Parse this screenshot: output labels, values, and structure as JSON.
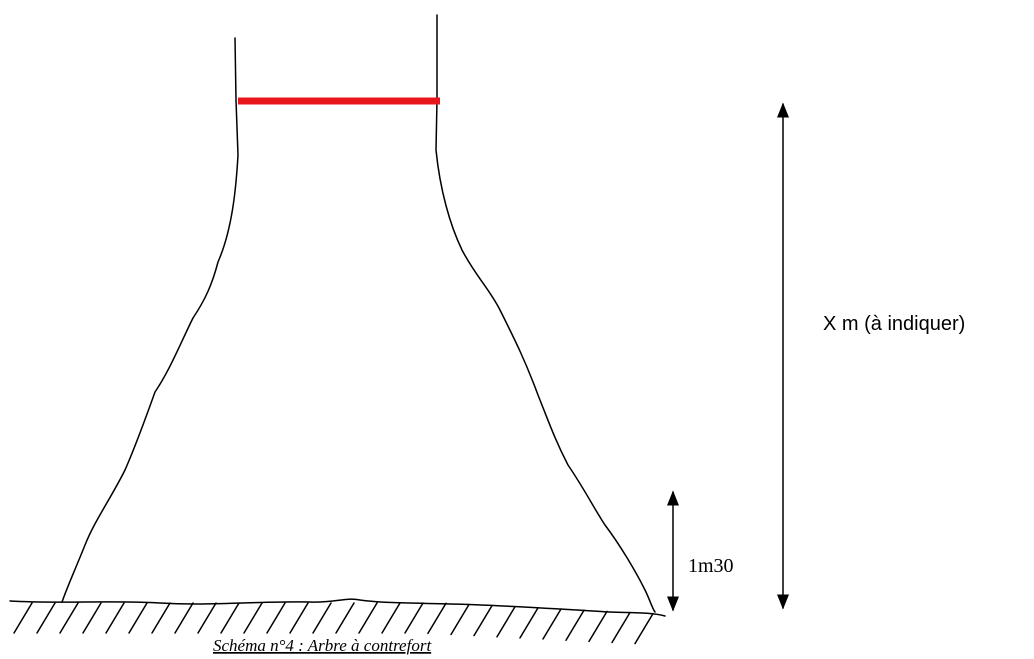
{
  "diagram": {
    "height_label": "X m (à indiquer)",
    "base_label": "1m30",
    "caption": "Schéma n°4 : Arbre à contrefort"
  }
}
